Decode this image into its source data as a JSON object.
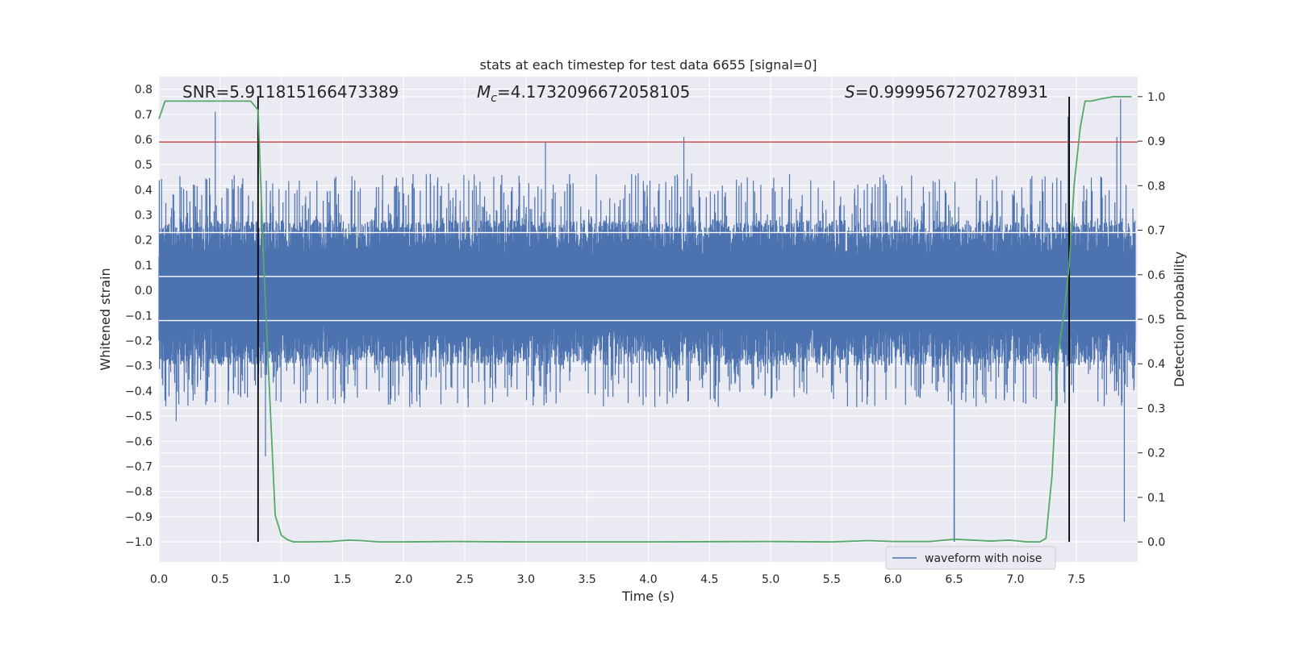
{
  "chart_data": {
    "type": "line",
    "title": "stats at each timestep for test data 6655 [signal=0]",
    "xlabel": "Time (s)",
    "ylabel": "Whitened strain",
    "y2label": "Detection probability",
    "xlim": [
      0.0,
      8.0
    ],
    "ylim": [
      -1.08,
      0.85
    ],
    "y2lim": [
      -0.045,
      1.045
    ],
    "x_ticks": [
      "0.0",
      "0.5",
      "1.0",
      "1.5",
      "2.0",
      "2.5",
      "3.0",
      "3.5",
      "4.0",
      "4.5",
      "5.0",
      "5.5",
      "6.0",
      "6.5",
      "7.0",
      "7.5"
    ],
    "y_ticks": [
      "0.8",
      "0.7",
      "0.6",
      "0.5",
      "0.4",
      "0.3",
      "0.2",
      "0.1",
      "0.0",
      "−0.1",
      "−0.2",
      "−0.3",
      "−0.4",
      "−0.5",
      "−0.6",
      "−0.7",
      "−0.8",
      "−0.9",
      "−1.0"
    ],
    "y2_ticks": [
      "1.0",
      "0.9",
      "0.8",
      "0.7",
      "0.6",
      "0.5",
      "0.4",
      "0.3",
      "0.2",
      "0.1",
      "0.0"
    ],
    "grid": true,
    "legend_position": "lower-right",
    "annotations": {
      "snr": "SNR=5.911815166473389",
      "mc_symbol": "M",
      "mc_sub": "c",
      "mc_value": "=4.1732096672058105",
      "s_symbol": "S",
      "s_value": "=0.9999567270278931"
    },
    "threshold_line": {
      "y": 0.59,
      "color": "#c44e52"
    },
    "horizontal_white_lines": [
      0.23,
      0.055,
      -0.12
    ],
    "vertical_markers": [
      0.81,
      7.44
    ],
    "series": [
      {
        "name": "waveform with noise",
        "color": "#4c72b0",
        "envelope": {
          "x_start": 0.0,
          "x_end": 7.98,
          "typical_upper": 0.28,
          "typical_lower": -0.3,
          "typical_spike_up": 0.45,
          "typical_spike_down": -0.45,
          "notable_spikes": [
            {
              "x": 0.46,
              "y": 0.71
            },
            {
              "x": 0.14,
              "y": -0.52
            },
            {
              "x": 0.87,
              "y": -0.66
            },
            {
              "x": 3.16,
              "y": 0.59
            },
            {
              "x": 4.29,
              "y": 0.61
            },
            {
              "x": 6.5,
              "y": -1.0
            },
            {
              "x": 7.86,
              "y": 0.76
            },
            {
              "x": 7.89,
              "y": -0.92
            },
            {
              "x": 7.83,
              "y": 0.61
            },
            {
              "x": 7.43,
              "y": 0.69
            }
          ]
        }
      },
      {
        "name": "",
        "color": "#55a868",
        "axis": "secondary",
        "x": [
          0.0,
          0.05,
          0.3,
          0.6,
          0.75,
          0.81,
          0.86,
          0.95,
          1.0,
          1.05,
          1.1,
          1.2,
          1.4,
          1.55,
          1.65,
          1.8,
          2.0,
          2.4,
          3.0,
          4.0,
          5.0,
          5.5,
          5.8,
          6.0,
          6.3,
          6.5,
          6.8,
          6.95,
          7.1,
          7.2,
          7.25,
          7.3,
          7.35,
          7.4,
          7.44,
          7.48,
          7.53,
          7.57,
          7.62,
          7.7,
          7.8,
          7.95
        ],
        "values": [
          0.95,
          0.99,
          0.99,
          0.99,
          0.99,
          0.97,
          0.6,
          0.06,
          0.015,
          0.005,
          0.0,
          0.0,
          0.001,
          0.004,
          0.003,
          0.0,
          0.0,
          0.001,
          0.0,
          0.0,
          0.001,
          0.0,
          0.003,
          0.001,
          0.001,
          0.006,
          0.002,
          0.004,
          0.0,
          0.0,
          0.008,
          0.15,
          0.42,
          0.52,
          0.62,
          0.8,
          0.93,
          0.99,
          0.99,
          0.995,
          1.0,
          1.0
        ]
      }
    ]
  }
}
